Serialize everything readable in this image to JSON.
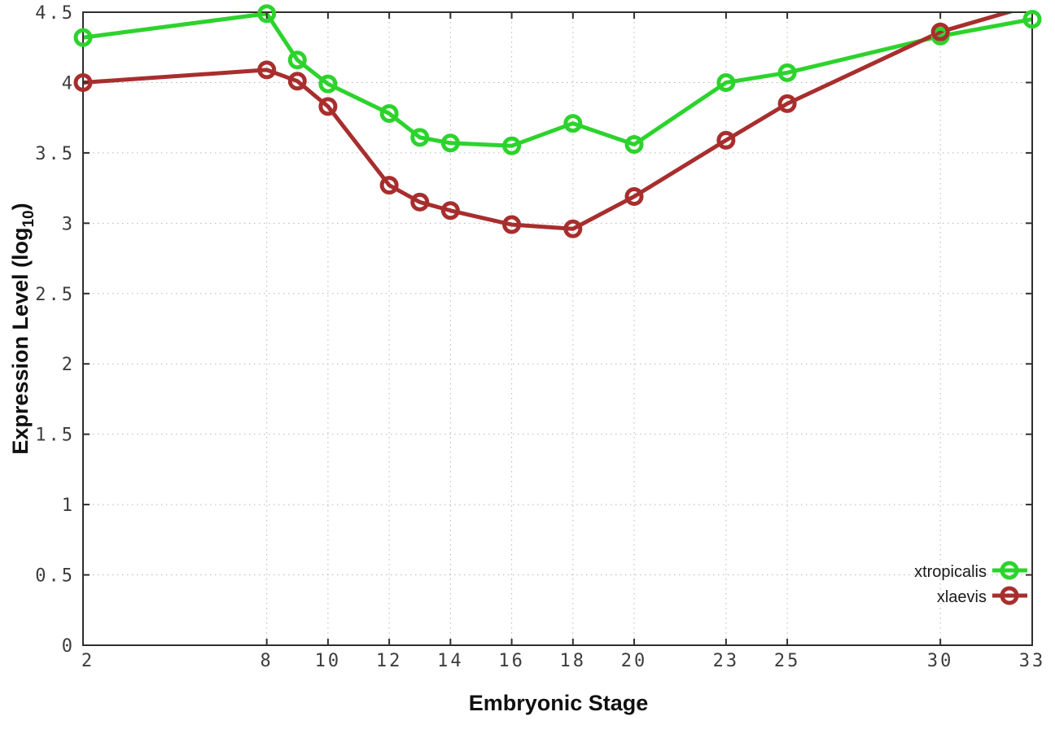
{
  "chart_data": {
    "type": "line",
    "title": "",
    "xlabel": "Embryonic Stage",
    "ylabel_main": "Expression Level (log",
    "ylabel_sub": "10",
    "ylabel_close": ")",
    "x": [
      2,
      8,
      9,
      10,
      12,
      13,
      14,
      16,
      18,
      20,
      23,
      25,
      30,
      33
    ],
    "x_tick_labels": [
      2,
      8,
      10,
      12,
      14,
      16,
      18,
      20,
      23,
      25,
      30,
      33
    ],
    "y_tick_labels": [
      0,
      0.5,
      1,
      1.5,
      2,
      2.5,
      3,
      3.5,
      4,
      4.5
    ],
    "xlim": [
      2,
      33
    ],
    "ylim": [
      0,
      4.5
    ],
    "grid": true,
    "legend_position": "bottom-right",
    "series": [
      {
        "name": "xtropicalis",
        "color": "#2cd32c",
        "values": [
          4.32,
          4.49,
          4.16,
          3.99,
          3.78,
          3.61,
          3.57,
          3.55,
          3.71,
          3.56,
          4.0,
          4.07,
          4.33,
          4.45
        ]
      },
      {
        "name": "xlaevis",
        "color": "#a82e2e",
        "values": [
          4.0,
          4.09,
          4.01,
          3.83,
          3.27,
          3.15,
          3.09,
          2.99,
          2.96,
          3.19,
          3.59,
          3.85,
          4.36,
          4.55
        ]
      }
    ],
    "style": {
      "grid_color": "#b5b5b5",
      "axis_color": "#2f2f2f",
      "tick_label_color": "#3d3d3d"
    }
  }
}
